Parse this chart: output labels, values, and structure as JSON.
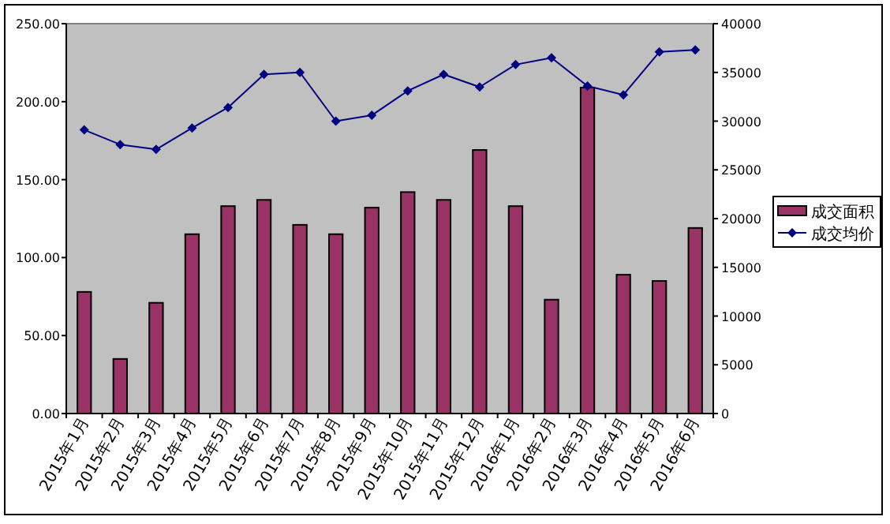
{
  "chart_data": {
    "type": "bar",
    "categories": [
      "2015年1月",
      "2015年2月",
      "2015年3月",
      "2015年4月",
      "2015年5月",
      "2015年6月",
      "2015年7月",
      "2015年8月",
      "2015年9月",
      "2015年10月",
      "2015年11月",
      "2015年12月",
      "2016年1月",
      "2016年2月",
      "2016年3月",
      "2016年4月",
      "2016年5月",
      "2016年6月"
    ],
    "series": [
      {
        "name": "成交面积",
        "color": "#993366",
        "values": [
          78,
          35,
          71,
          115,
          133,
          137,
          121,
          115,
          132,
          142,
          137,
          169,
          133,
          73,
          209,
          89,
          85,
          119
        ]
      },
      {
        "name": "成交均价",
        "type": "line",
        "axis": "y2",
        "color": "#000080",
        "marker": "diamond",
        "values": [
          29100,
          27600,
          27100,
          29300,
          31400,
          34800,
          35000,
          30000,
          30600,
          33100,
          34800,
          33500,
          35800,
          36500,
          33600,
          32700,
          37100,
          37300
        ]
      }
    ],
    "ylim": [
      0,
      250
    ],
    "yticks": [
      {
        "value": 0,
        "label": "0.00"
      },
      {
        "value": 50,
        "label": "50.00"
      },
      {
        "value": 100,
        "label": "100.00"
      },
      {
        "value": 150,
        "label": "150.00"
      },
      {
        "value": 200,
        "label": "200.00"
      },
      {
        "value": 250,
        "label": "250.00"
      }
    ],
    "y2lim": [
      0,
      40000
    ],
    "y2ticks": [
      0,
      5000,
      10000,
      15000,
      20000,
      25000,
      30000,
      35000,
      40000
    ],
    "legend": "right",
    "grid": false
  }
}
